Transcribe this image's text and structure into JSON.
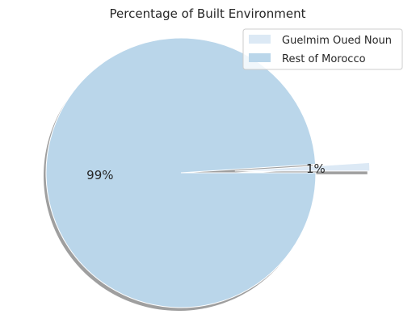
{
  "chart_data": {
    "type": "pie",
    "title": "Percentage of Built Environment",
    "labels": [
      "Guelmim Oued Noun",
      "Rest of Morocco"
    ],
    "values": [
      1,
      99
    ],
    "percent_labels": [
      "1%",
      "99%"
    ],
    "colors": [
      "#dce9f5",
      "#bad6ea"
    ],
    "explode": [
      0.4,
      0
    ],
    "shadow": true,
    "legend": "top-right"
  }
}
